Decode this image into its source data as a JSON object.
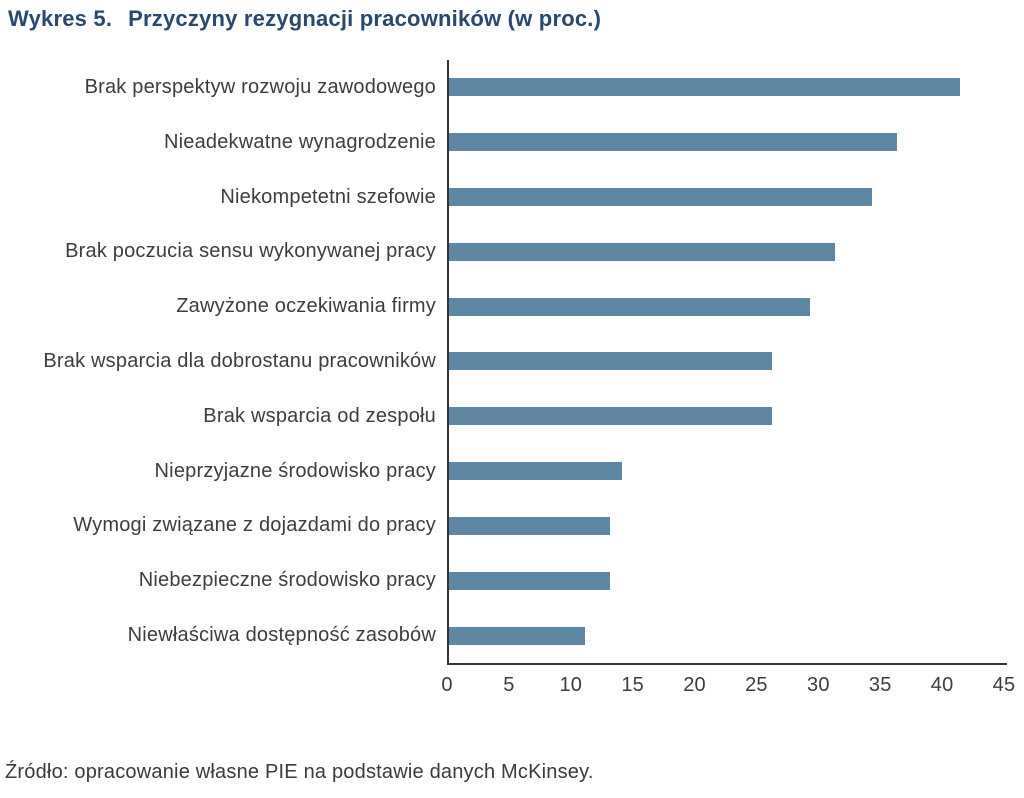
{
  "title": {
    "prefix": "Wykres 5.",
    "text": "Przyczyny rezygnacji pracowników (w proc.)"
  },
  "source_note": "Źródło: opracowanie własne PIE na podstawie danych McKinsey.",
  "colors": {
    "bar": "#5d87a5",
    "title": "#28486e",
    "axis": "#333333",
    "label": "#3d3d3d"
  },
  "chart_data": {
    "type": "bar",
    "orientation": "horizontal",
    "title": "Wykres 5. Przyczyny rezygnacji pracowników (w proc.)",
    "categories": [
      "Brak perspektyw rozwoju zawodowego",
      "Nieadekwatne wynagrodzenie",
      "Niekompetetni szefowie",
      "Brak poczucia sensu wykonywanej pracy",
      "Zawyżone oczekiwania firmy",
      "Brak wsparcia dla dobrostanu pracowników",
      "Brak wsparcia od zespołu",
      "Nieprzyjazne środowisko pracy",
      "Wymogi związane z dojazdami do pracy",
      "Niebezpieczne środowisko pracy",
      "Niewłaściwa dostępność zasobów"
    ],
    "values": [
      41,
      36,
      34,
      31,
      29,
      26,
      26,
      14,
      13,
      13,
      11
    ],
    "unit": "proc.",
    "xlabel": "",
    "ylabel": "",
    "xlim": [
      0,
      45
    ],
    "xticks": [
      0,
      5,
      10,
      15,
      20,
      25,
      30,
      35,
      40,
      45
    ],
    "grid": false,
    "legend": false,
    "source": "Źródło: opracowanie własne PIE na podstawie danych McKinsey."
  }
}
